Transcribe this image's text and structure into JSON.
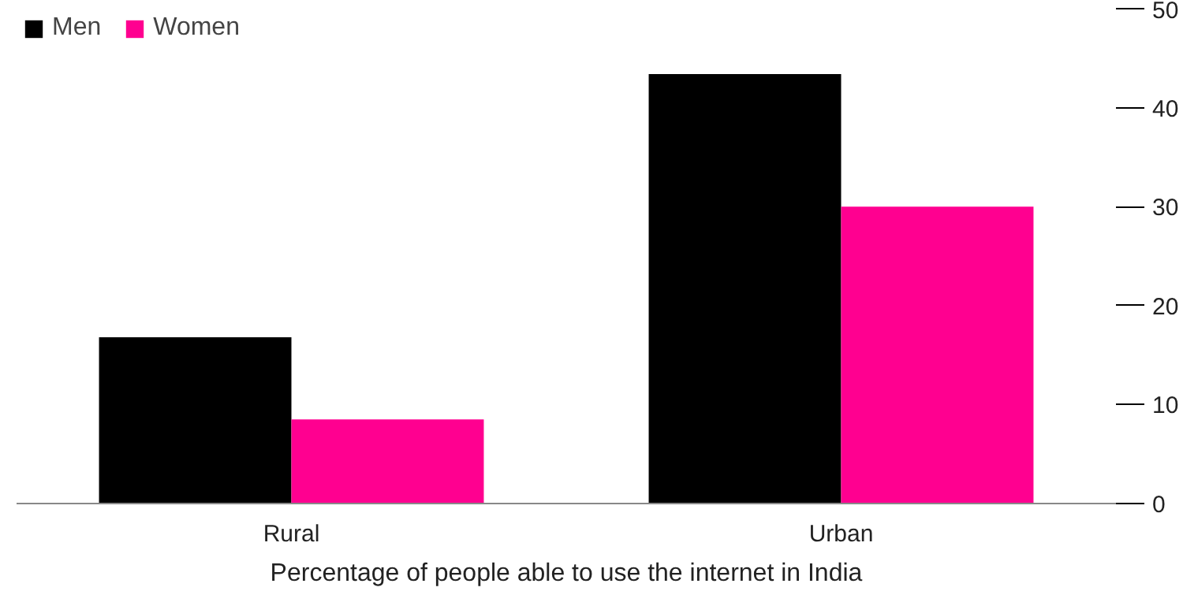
{
  "chart_data": {
    "type": "bar",
    "xlabel": "Percentage of people able to use the internet in India",
    "categories": [
      "Rural",
      "Urban"
    ],
    "series": [
      {
        "name": "Men",
        "color": "#000000",
        "values": [
          16.8,
          43.4
        ]
      },
      {
        "name": "Women",
        "color": "#ff0090",
        "values": [
          8.5,
          30
        ]
      }
    ],
    "ylim": [
      0,
      50
    ],
    "yticks": [
      0,
      10,
      20,
      30,
      40,
      50
    ],
    "grid": false,
    "legend": "top left"
  }
}
